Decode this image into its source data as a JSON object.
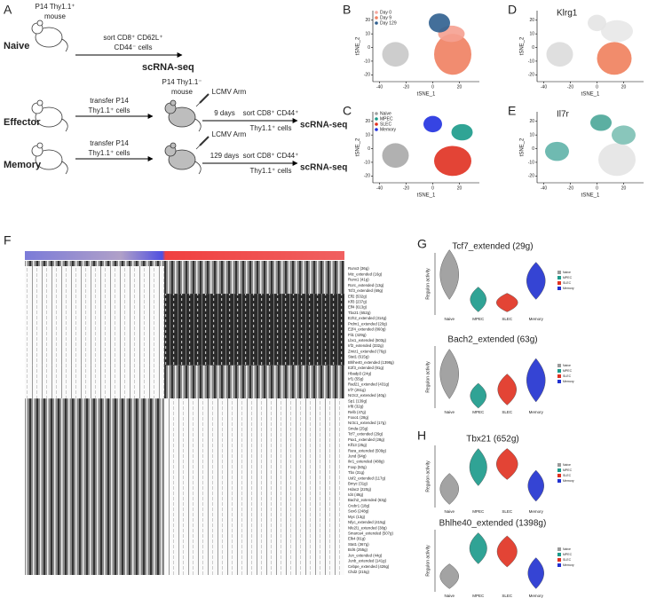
{
  "letters": [
    "A",
    "B",
    "C",
    "D",
    "E",
    "F",
    "G",
    "H"
  ],
  "schematic": {
    "donor_mouse": [
      "P14 Thy1.1⁺",
      "mouse"
    ],
    "host_mouse": [
      "P14 Thy1.1⁻",
      "mouse"
    ],
    "rows": [
      {
        "label": "Naive",
        "step1": [
          "sort CD8⁺ CD62L⁺",
          "CD44⁻ cells"
        ],
        "output": "scRNA-seq"
      },
      {
        "label": "Effector",
        "step1": [
          "transfer P14",
          "Thy1.1⁺ cells"
        ],
        "infection": "LCMV Arm",
        "time": "9 days",
        "step2": [
          "sort CD8⁺ CD44⁺",
          "Thy1.1⁺ cells"
        ],
        "output": "scRNA-seq"
      },
      {
        "label": "Memory",
        "step1": [
          "transfer P14",
          "Thy1.1⁺ cells"
        ],
        "infection": "LCMV Arm",
        "time": "129 days",
        "step2": [
          "sort CD8⁺ CD44⁺",
          "Thy1.1⁺ cells"
        ],
        "output": "scRNA-seq"
      }
    ]
  },
  "tsne": {
    "xlabel": "tSNE_1",
    "ylabel": "tSNE_2",
    "xlim": [
      -45,
      35
    ],
    "ylim": [
      -25,
      27
    ],
    "xticks": [
      -40,
      -20,
      0,
      20
    ],
    "yticks": [
      -20,
      -10,
      0,
      10,
      20
    ],
    "B": {
      "legend": [
        {
          "name": "Day 0",
          "color": "#f4a9a0"
        },
        {
          "name": "Day 9",
          "color": "#f08060"
        },
        {
          "name": "Day 129",
          "color": "#2f5f8f"
        }
      ]
    },
    "C": {
      "legend": [
        {
          "name": "Naive",
          "color": "#a0a0a0"
        },
        {
          "name": "MPEC",
          "color": "#1a9a8a"
        },
        {
          "name": "SLEC",
          "color": "#e03020"
        },
        {
          "name": "Memory",
          "color": "#2030e0"
        }
      ]
    },
    "D": {
      "title": "Klrg1"
    },
    "E": {
      "title": "Il7r"
    }
  },
  "heatmap": {
    "rows": [
      "Runx3 (36g)",
      "Mtc_extended (16g)",
      "Runx1 (41g)",
      "Rorc_extended (13g)",
      "Tcf3_extended (69g)",
      "Elf2 (532g)",
      "Klf3 (237g)",
      "Elf4 (613g)",
      "Tbx21 (652g)",
      "Ezh2_extended (314g)",
      "Prdm1_extended (20g)",
      "E2f4_extended (860g)",
      "Fli1 (429g)",
      "Lbx1_extended (503g)",
      "Irf2_extended (332g)",
      "Zmiz1_extended (76g)",
      "Stat1 (615g)",
      "Bhlhe40_extended (1398g)",
      "E2f3_extended (91g)",
      "Hbadp3 (24g)",
      "Irf1 (55g)",
      "Rad21_extended (431g)",
      "Irf7 (261g)",
      "Nr2c2_extended (40g)",
      "Sp1 (139g)",
      "Irf8 (32g)",
      "Relb (47g)",
      "Foxo1 (28g)",
      "Nr3c1_extended (17g)",
      "Smda (25g)",
      "Tcf7_extended (29g)",
      "Pax1_extended (28g)",
      "Klf13 (25g)",
      "Rara_extended (509g)",
      "Jund (94g)",
      "Ikr1_extended (488g)",
      "Foxp (50g)",
      "Tbx (31g)",
      "Usf2_extended (117g)",
      "Bmyc (31g)",
      "Hdac2 (220g)",
      "Id4 (48g)",
      "Bach2_extended (63g)",
      "Crebr1 (18g)",
      "Sox6 (248g)",
      "Myc (13g)",
      "Nfyc_extended (415g)",
      "Nfe2l1_extended (38g)",
      "Smarca4_extended (507g)",
      "Elk4 (81g)",
      "Stat1 (367g)",
      "Bcl6 (255g)",
      "Jun_extended (44g)",
      "Junb_extended (141g)",
      "Cebpe_extended (426g)",
      "Chd2 (215g)"
    ]
  },
  "violins": {
    "ylabel": "Regulon activity",
    "categories": [
      "Naive",
      "MPEC",
      "SLEC",
      "Memory"
    ],
    "colors": [
      "#9a9a9a",
      "#1a9a8a",
      "#e03020",
      "#2030d0"
    ],
    "plots": [
      {
        "title": "Tcf7_extended (29g)"
      },
      {
        "title": "Bach2_extended (63g)"
      },
      {
        "title": "Tbx21 (652g)"
      },
      {
        "title": "Bhlhe40_extended (1398g)"
      }
    ]
  }
}
